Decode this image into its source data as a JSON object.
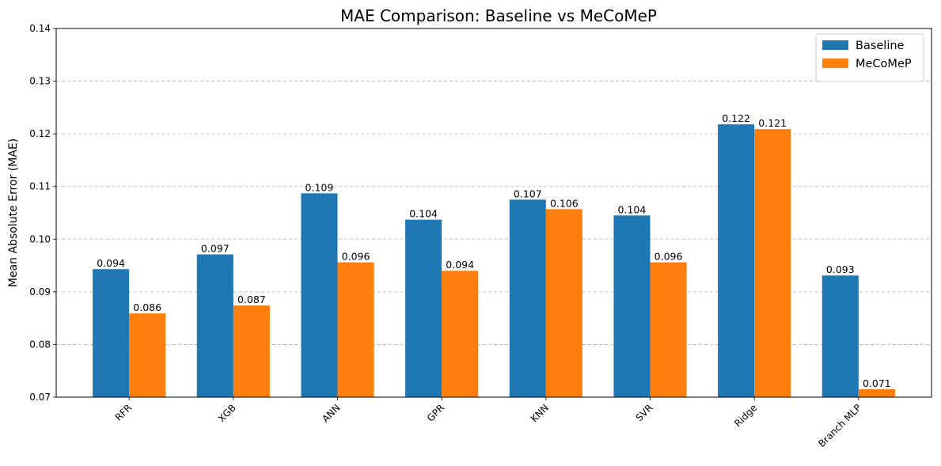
{
  "chart_data": {
    "type": "bar",
    "title": "MAE Comparison: Baseline vs MeCoMeP",
    "xlabel": "",
    "ylabel": "Mean Absolute Error (MAE)",
    "categories": [
      "RFR",
      "XGB",
      "ANN",
      "GPR",
      "KNN",
      "SVR",
      "Ridge",
      "Branch MLP"
    ],
    "series": [
      {
        "name": "Baseline",
        "color": "#1f77b4",
        "values": [
          0.0943,
          0.0971,
          0.1087,
          0.1037,
          0.1075,
          0.1045,
          0.1218,
          0.0931
        ],
        "labels": [
          "0.094",
          "0.097",
          "0.109",
          "0.104",
          "0.107",
          "0.104",
          "0.122",
          "0.093"
        ]
      },
      {
        "name": "MeCoMeP",
        "color": "#ff7f0e",
        "values": [
          0.0859,
          0.0874,
          0.0956,
          0.094,
          0.1057,
          0.0956,
          0.1209,
          0.0715
        ],
        "labels": [
          "0.086",
          "0.087",
          "0.096",
          "0.094",
          "0.106",
          "0.096",
          "0.121",
          "0.071"
        ]
      }
    ],
    "ylim": [
      0.07,
      0.14
    ],
    "yticks": [
      0.07,
      0.08,
      0.09,
      0.1,
      0.11,
      0.12,
      0.13,
      0.14
    ],
    "ytick_labels": [
      "0.07",
      "0.08",
      "0.09",
      "0.10",
      "0.11",
      "0.12",
      "0.13",
      "0.14"
    ],
    "grid": "y-dashed",
    "legend_position": "top-right"
  }
}
